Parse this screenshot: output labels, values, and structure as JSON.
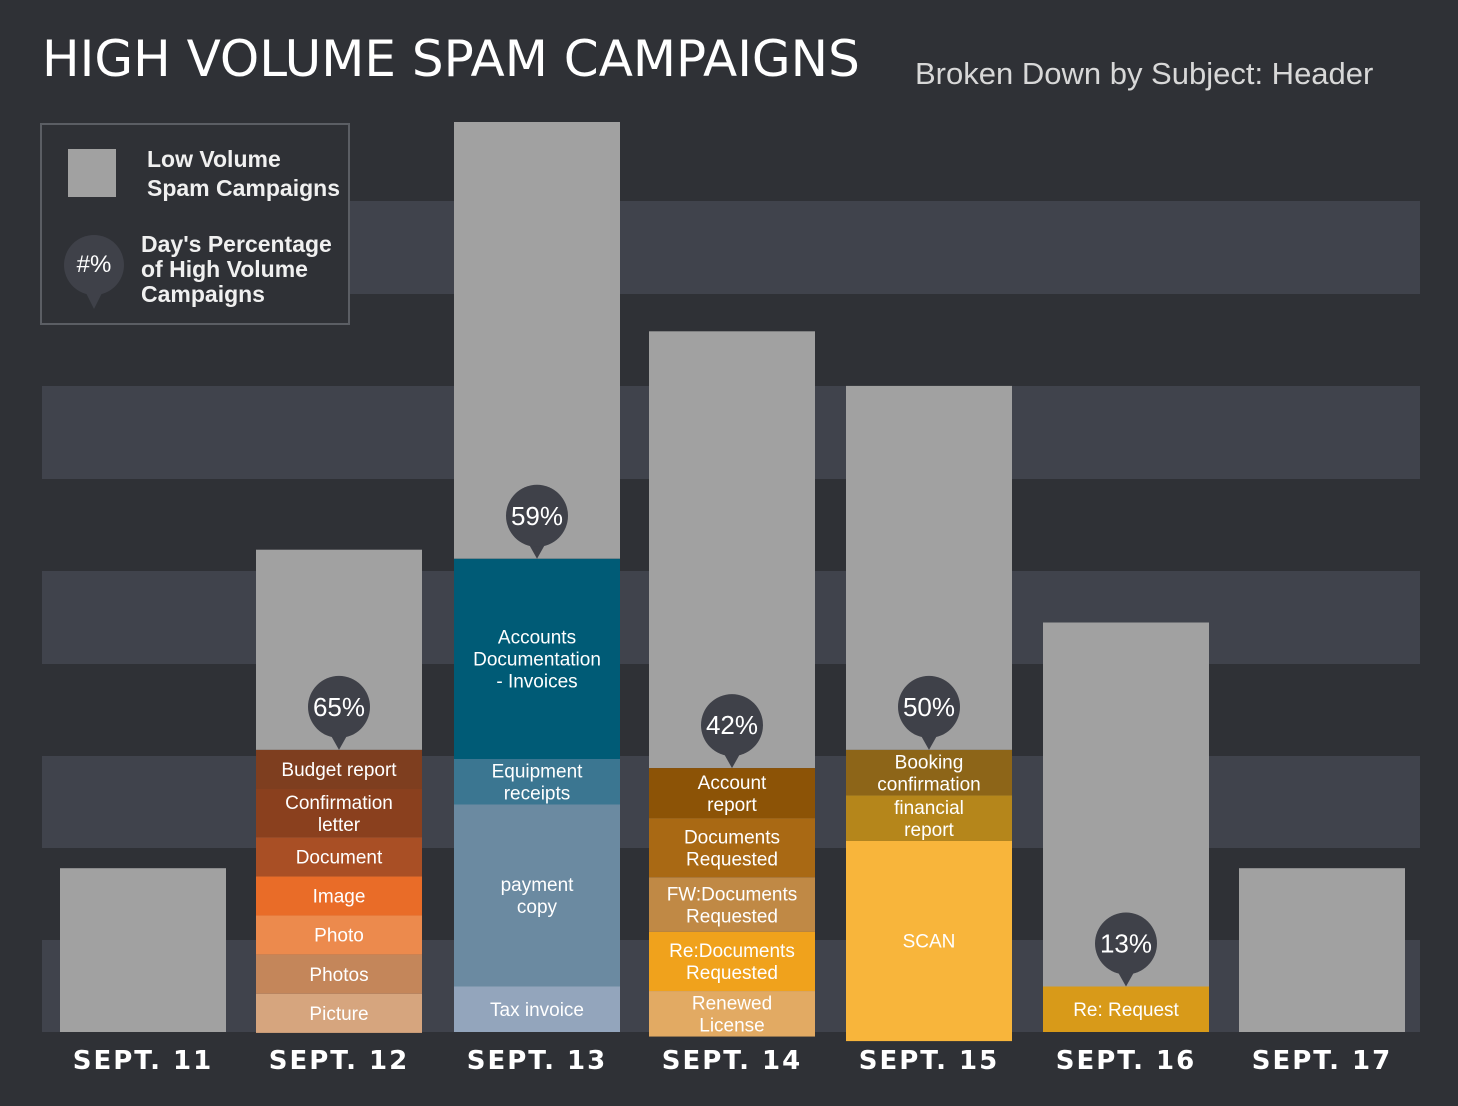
{
  "title": "HIGH VOLUME SPAM CAMPAIGNS",
  "subtitle": "Broken Down by Subject: Header",
  "colors": {
    "background": "#2f3136",
    "band": "#40434c",
    "low_volume": "#a1a1a1",
    "pin": "#3f4149"
  },
  "legend": {
    "low_volume_label": "Low Volume\nSpam Campaigns",
    "pin_symbol": "#%",
    "percentage_label": "Day's Percentage\nof High Volume\nCampaigns"
  },
  "chart_data": {
    "type": "bar",
    "stacked": true,
    "categories": [
      "SEPT. 11",
      "SEPT. 12",
      "SEPT. 13",
      "SEPT. 14",
      "SEPT. 15",
      "SEPT. 16",
      "SEPT. 17"
    ],
    "totals": [
      18,
      53,
      100,
      77,
      71,
      45,
      18
    ],
    "low_volume_values": [
      18,
      22,
      48,
      48,
      40,
      40,
      18
    ],
    "day_percentages": [
      null,
      "65%",
      "59%",
      "42%",
      "50%",
      "13%",
      null
    ],
    "grid": "alternating horizontal bands",
    "legend_position": "top-left",
    "segments": [
      [],
      [
        {
          "label": "Budget report",
          "value": 4.3,
          "color": "#7e3e1f"
        },
        {
          "label": "Confirmation\nletter",
          "value": 5.3,
          "color": "#8a401e"
        },
        {
          "label": "Document",
          "value": 4.3,
          "color": "#a94f25"
        },
        {
          "label": "Image",
          "value": 4.3,
          "color": "#e96c28"
        },
        {
          "label": "Photo",
          "value": 4.3,
          "color": "#ec8a4d"
        },
        {
          "label": "Photos",
          "value": 4.3,
          "color": "#c4865a"
        },
        {
          "label": "Picture",
          "value": 4.3,
          "color": "#d6a57e"
        }
      ],
      [
        {
          "label": "Accounts\nDocumentation\n- Invoices",
          "value": 22,
          "color": "#005b76"
        },
        {
          "label": "Equipment\nreceipts",
          "value": 5,
          "color": "#3b7691"
        },
        {
          "label": "payment\ncopy",
          "value": 20,
          "color": "#6b8aa1"
        },
        {
          "label": "Tax invoice",
          "value": 5,
          "color": "#93a5bc"
        }
      ],
      [
        {
          "label": "Account\nreport",
          "value": 5.5,
          "color": "#8c5306"
        },
        {
          "label": "Documents\nRequested",
          "value": 6.5,
          "color": "#a96914"
        },
        {
          "label": "FW:Documents\nRequested",
          "value": 6,
          "color": "#c08945"
        },
        {
          "label": "Re:Documents\nRequested",
          "value": 6.5,
          "color": "#f0a21c"
        },
        {
          "label": "Renewed\nLicense",
          "value": 5,
          "color": "#e2aa63"
        }
      ],
      [
        {
          "label": "Booking\nconfirmation",
          "value": 5,
          "color": "#8d6518"
        },
        {
          "label": "financial\nreport",
          "value": 5,
          "color": "#b5861b"
        },
        {
          "label": "SCAN",
          "value": 22,
          "color": "#f8b53b"
        }
      ],
      [
        {
          "label": "Re: Request",
          "value": 5,
          "color": "#d89a19"
        }
      ],
      []
    ]
  }
}
